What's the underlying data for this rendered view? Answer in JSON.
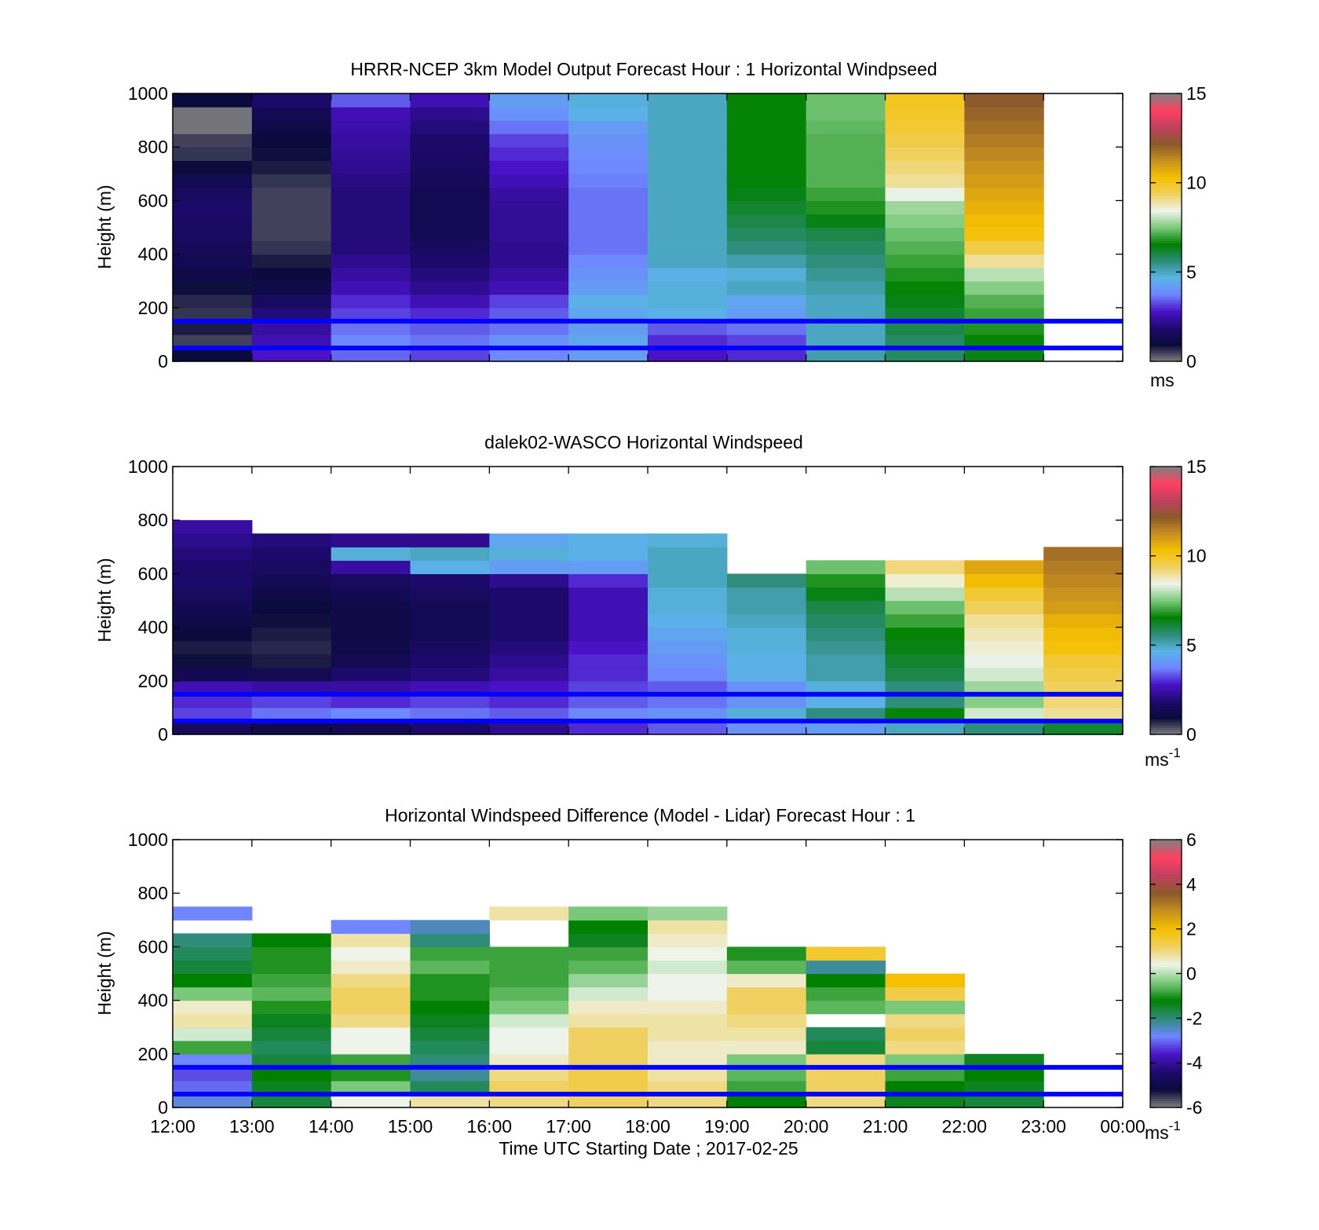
{
  "panels": [
    {
      "title": "HRRR-NCEP 3km Model Output   Forecast Hour : 1 Horizontal Windpseed",
      "ylabel": "Height (m)",
      "cbar_unit": "ms",
      "cbar_unit_sup": ""
    },
    {
      "title": "dalek02-WASCO  Horizontal Windspeed",
      "ylabel": "Height (m)",
      "cbar_unit": "ms",
      "cbar_unit_sup": "-1"
    },
    {
      "title": "Horizontal Windspeed Difference (Model - Lidar) Forecast Hour : 1",
      "ylabel": "Height (m)",
      "cbar_unit": "ms",
      "cbar_unit_sup": "-1"
    }
  ],
  "xlabel": "Time UTC  Starting Date ; 2017-02-25",
  "x_ticks": [
    "12:00",
    "13:00",
    "14:00",
    "15:00",
    "16:00",
    "17:00",
    "18:00",
    "19:00",
    "20:00",
    "21:00",
    "22:00",
    "23:00",
    "00:00"
  ],
  "y_ticks": [
    "0",
    "200",
    "400",
    "600",
    "800",
    "1000"
  ],
  "cbar_ticks_speed": [
    "0",
    "5",
    "10",
    "15"
  ],
  "cbar_ticks_diff": [
    "-6",
    "-4",
    "-2",
    "0",
    "2",
    "4",
    "6"
  ],
  "colors": {
    "line": "#0000ff",
    "colormap_speed": [
      "#808080",
      "#0a0a3a",
      "#1e0a6e",
      "#4a12c8",
      "#6f86ff",
      "#5ab4e6",
      "#2e8c78",
      "#008000",
      "#7ac87a",
      "#eef4ea",
      "#f0d060",
      "#f5c000",
      "#c89020",
      "#8b5a2b",
      "#c04060",
      "#ff4060",
      "#808080"
    ],
    "colormap_diff": [
      "#808080",
      "#0a0a3a",
      "#1e0a6e",
      "#4a12c8",
      "#6f86ff",
      "#2e8c78",
      "#008000",
      "#7ac87a",
      "#eef4ea",
      "#f0d060",
      "#f5c000",
      "#c89020",
      "#8b5a2b",
      "#c04060",
      "#ff4060",
      "#808080"
    ]
  },
  "chart_data": [
    {
      "type": "heatmap",
      "title": "HRRR-NCEP 3km Model Output   Forecast Hour : 1 Horizontal Windpseed",
      "xlabel": "",
      "ylabel": "Height (m)",
      "x": [
        "12:00",
        "13:00",
        "14:00",
        "15:00",
        "16:00",
        "17:00",
        "18:00",
        "19:00",
        "20:00",
        "21:00",
        "22:00",
        "23:00"
      ],
      "y": [
        25,
        75,
        125,
        175,
        225,
        275,
        325,
        375,
        425,
        475,
        525,
        575,
        625,
        675,
        725,
        775,
        825,
        875,
        925,
        975
      ],
      "ylim": [
        0,
        1000
      ],
      "clim": [
        0,
        15
      ],
      "colorbar_label": "ms",
      "hlines_m": [
        150,
        50
      ],
      "values": [
        [
          1.0,
          2.8,
          3.5,
          3.2,
          3.8,
          4.2,
          2.8,
          3.0,
          5.2,
          5.8,
          6.4,
          null
        ],
        [
          0.5,
          2.6,
          3.8,
          3.6,
          4.0,
          4.4,
          3.0,
          3.2,
          5.0,
          5.8,
          6.6,
          null
        ],
        [
          0.8,
          2.4,
          3.6,
          3.4,
          3.6,
          4.2,
          3.4,
          3.6,
          5.0,
          6.0,
          6.8,
          null
        ],
        [
          0.6,
          2.0,
          3.2,
          3.0,
          3.4,
          4.4,
          4.6,
          4.2,
          5.0,
          6.2,
          7.0,
          null
        ],
        [
          0.7,
          1.6,
          3.0,
          2.6,
          3.2,
          4.6,
          4.8,
          4.4,
          5.0,
          6.4,
          7.2,
          null
        ],
        [
          0.9,
          1.2,
          2.6,
          2.2,
          2.6,
          4.2,
          4.8,
          5.0,
          5.2,
          6.6,
          7.6,
          null
        ],
        [
          1.2,
          1.0,
          2.4,
          2.0,
          2.4,
          4.0,
          4.6,
          4.8,
          5.4,
          6.8,
          8.0,
          null
        ],
        [
          1.4,
          0.8,
          2.2,
          1.8,
          2.2,
          3.8,
          5.0,
          5.2,
          5.6,
          7.0,
          9.0,
          null
        ],
        [
          1.5,
          0.6,
          2.0,
          1.6,
          2.2,
          3.6,
          5.0,
          5.6,
          5.8,
          7.2,
          9.6,
          null
        ],
        [
          1.6,
          0.5,
          2.0,
          1.4,
          2.3,
          3.6,
          5.0,
          5.8,
          6.0,
          7.4,
          10.2,
          null
        ],
        [
          1.7,
          0.5,
          2.0,
          1.4,
          2.3,
          3.6,
          5.0,
          6.0,
          6.4,
          7.6,
          10.4,
          null
        ],
        [
          1.8,
          0.5,
          2.0,
          1.4,
          2.3,
          3.6,
          5.0,
          6.2,
          6.8,
          7.8,
          10.6,
          null
        ],
        [
          1.6,
          0.5,
          2.0,
          1.4,
          2.4,
          3.6,
          5.0,
          6.4,
          7.0,
          8.4,
          10.8,
          null
        ],
        [
          1.4,
          0.6,
          2.1,
          1.5,
          2.6,
          3.7,
          5.0,
          6.5,
          7.2,
          9.0,
          11.0,
          null
        ],
        [
          1.0,
          0.8,
          2.2,
          1.6,
          2.8,
          3.8,
          5.0,
          6.6,
          7.2,
          9.2,
          11.2,
          null
        ],
        [
          0.6,
          0.9,
          2.3,
          1.7,
          3.0,
          3.9,
          5.0,
          6.6,
          7.2,
          9.4,
          11.4,
          null
        ],
        [
          0.5,
          1.0,
          2.4,
          1.8,
          3.2,
          4.0,
          5.0,
          6.6,
          7.2,
          9.6,
          11.6,
          null
        ],
        [
          0.1,
          1.2,
          2.5,
          2.0,
          3.6,
          4.2,
          5.0,
          6.6,
          7.3,
          9.8,
          11.8,
          null
        ],
        [
          0.1,
          1.4,
          2.6,
          2.2,
          4.0,
          4.6,
          5.0,
          6.6,
          7.4,
          9.9,
          12.0,
          null
        ],
        [
          1.0,
          1.8,
          3.4,
          2.6,
          4.2,
          4.8,
          5.0,
          6.6,
          7.4,
          10.0,
          12.2,
          null
        ]
      ]
    },
    {
      "type": "heatmap",
      "title": "dalek02-WASCO  Horizontal Windspeed",
      "xlabel": "",
      "ylabel": "Height (m)",
      "x": [
        "12:00",
        "13:00",
        "14:00",
        "15:00",
        "16:00",
        "17:00",
        "18:00",
        "19:00",
        "20:00",
        "21:00",
        "22:00",
        "23:00"
      ],
      "y": [
        25,
        75,
        125,
        175,
        225,
        275,
        325,
        375,
        425,
        475,
        525,
        575,
        625,
        675,
        725,
        775,
        825,
        875,
        925,
        975
      ],
      "ylim": [
        0,
        1000
      ],
      "clim": [
        0,
        15
      ],
      "colorbar_label": "ms-1",
      "hlines_m": [
        150,
        50
      ],
      "values": [
        [
          1.5,
          1.2,
          1.4,
          1.8,
          2.2,
          3.0,
          3.4,
          4.0,
          4.2,
          5.0,
          5.6,
          6.2
        ],
        [
          3.2,
          3.6,
          3.8,
          3.6,
          3.4,
          3.8,
          4.0,
          4.8,
          5.6,
          6.6,
          8.2,
          9.0
        ],
        [
          3.0,
          3.2,
          3.0,
          3.2,
          3.0,
          3.4,
          3.6,
          4.0,
          4.6,
          5.6,
          7.6,
          9.2
        ],
        [
          2.6,
          2.4,
          2.4,
          2.6,
          2.8,
          3.2,
          3.4,
          4.0,
          4.8,
          5.6,
          7.8,
          9.4
        ],
        [
          1.4,
          1.4,
          1.8,
          2.0,
          2.4,
          3.0,
          3.8,
          4.6,
          5.2,
          6.0,
          8.2,
          9.6
        ],
        [
          0.9,
          0.8,
          1.4,
          1.8,
          2.2,
          3.0,
          4.0,
          4.6,
          5.2,
          6.2,
          8.4,
          9.8
        ],
        [
          0.8,
          0.7,
          1.2,
          1.6,
          2.0,
          2.8,
          4.2,
          4.8,
          5.4,
          6.4,
          8.6,
          10.2
        ],
        [
          1.0,
          0.8,
          1.2,
          1.4,
          1.8,
          2.6,
          4.4,
          4.8,
          5.6,
          6.6,
          8.8,
          10.4
        ],
        [
          1.2,
          0.9,
          1.2,
          1.4,
          1.8,
          2.6,
          4.6,
          5.0,
          5.8,
          7.0,
          9.0,
          10.6
        ],
        [
          1.4,
          1.0,
          1.2,
          1.4,
          1.8,
          2.6,
          4.8,
          5.2,
          6.0,
          7.4,
          9.4,
          11.0
        ],
        [
          1.6,
          1.2,
          1.4,
          1.6,
          1.8,
          2.6,
          4.8,
          5.2,
          6.4,
          8.0,
          9.8,
          11.2
        ],
        [
          1.8,
          1.4,
          1.6,
          1.8,
          2.2,
          3.0,
          5.0,
          5.6,
          6.8,
          8.6,
          10.4,
          11.4
        ],
        [
          1.8,
          1.6,
          2.4,
          4.6,
          4.2,
          4.2,
          5.0,
          null,
          7.4,
          9.2,
          10.8,
          11.6
        ],
        [
          2.0,
          1.8,
          4.8,
          5.0,
          4.8,
          4.6,
          5.0,
          null,
          null,
          null,
          null,
          11.8
        ],
        [
          2.2,
          2.0,
          2.2,
          2.2,
          4.4,
          4.6,
          4.8,
          null,
          null,
          null,
          null,
          null
        ],
        [
          2.4,
          null,
          null,
          null,
          null,
          null,
          null,
          null,
          null,
          null,
          null,
          null
        ],
        [
          null,
          null,
          null,
          null,
          null,
          null,
          null,
          null,
          null,
          null,
          null,
          null
        ],
        [
          null,
          null,
          null,
          null,
          null,
          null,
          null,
          null,
          null,
          null,
          null,
          null
        ],
        [
          null,
          null,
          null,
          null,
          null,
          null,
          null,
          null,
          null,
          null,
          null,
          null
        ],
        [
          null,
          null,
          null,
          null,
          null,
          null,
          null,
          null,
          null,
          null,
          null,
          null
        ]
      ]
    },
    {
      "type": "heatmap",
      "title": "Horizontal Windspeed Difference (Model - Lidar) Forecast Hour : 1",
      "xlabel": "Time UTC  Starting Date ; 2017-02-25",
      "ylabel": "Height (m)",
      "x": [
        "12:00",
        "13:00",
        "14:00",
        "15:00",
        "16:00",
        "17:00",
        "18:00",
        "19:00",
        "20:00",
        "21:00",
        "22:00",
        "23:00"
      ],
      "y": [
        25,
        75,
        125,
        175,
        225,
        275,
        325,
        375,
        425,
        475,
        525,
        575,
        625,
        675,
        725,
        775,
        825,
        875,
        925,
        975
      ],
      "ylim": [
        0,
        1000
      ],
      "clim": [
        -6,
        6
      ],
      "colorbar_label": "ms-1",
      "hlines_m": [
        150,
        50
      ],
      "values": [
        [
          -2.6,
          -1.6,
          0.4,
          0.8,
          1.0,
          1.2,
          1.0,
          -1.2,
          1.0,
          -1.4,
          -1.6,
          null
        ],
        [
          -3.0,
          -1.4,
          -0.4,
          -1.8,
          1.2,
          1.4,
          1.0,
          -0.8,
          1.2,
          -1.2,
          -1.4,
          null
        ],
        [
          -3.2,
          -1.2,
          -1.0,
          -2.2,
          1.0,
          1.4,
          0.8,
          -0.6,
          1.2,
          -0.8,
          -1.2,
          null
        ],
        [
          -2.8,
          -1.6,
          -0.8,
          -2.0,
          0.6,
          1.2,
          0.6,
          -0.4,
          1.0,
          -0.4,
          -1.4,
          null
        ],
        [
          -0.8,
          -1.8,
          0.4,
          -1.8,
          0.4,
          1.2,
          0.6,
          0.6,
          -1.6,
          1.0,
          null,
          null
        ],
        [
          0.2,
          -1.6,
          0.4,
          -1.6,
          0.4,
          1.2,
          0.8,
          0.8,
          -1.8,
          1.2,
          null,
          null
        ],
        [
          0.8,
          -1.4,
          1.0,
          -1.4,
          0.2,
          0.8,
          0.8,
          1.0,
          null,
          1.0,
          null,
          null
        ],
        [
          0.6,
          -1.0,
          1.2,
          -1.2,
          -0.4,
          0.6,
          0.6,
          1.2,
          -0.6,
          -0.4,
          null,
          null
        ],
        [
          -0.4,
          -0.6,
          1.2,
          -1.0,
          -0.6,
          0.2,
          0.4,
          1.2,
          -0.8,
          1.4,
          null,
          null
        ],
        [
          -1.2,
          -0.8,
          1.0,
          -1.0,
          -0.8,
          -0.2,
          0.4,
          0.6,
          -1.2,
          2.0,
          null,
          null
        ],
        [
          -1.6,
          -1.0,
          0.6,
          -0.6,
          -0.8,
          -0.6,
          0.2,
          -0.6,
          -2.2,
          null,
          null,
          null
        ],
        [
          -1.8,
          -1.0,
          0.4,
          -0.8,
          -0.8,
          -0.8,
          0.4,
          -1.0,
          1.6,
          null,
          null,
          null
        ],
        [
          -2.0,
          -1.2,
          0.8,
          -2.0,
          null,
          -1.4,
          0.6,
          null,
          null,
          null,
          null,
          null
        ],
        [
          null,
          null,
          -2.8,
          -2.4,
          null,
          -1.2,
          0.8,
          null,
          null,
          null,
          null,
          null
        ],
        [
          -2.8,
          null,
          null,
          null,
          0.8,
          -0.4,
          -0.2,
          null,
          null,
          null,
          null,
          null
        ],
        [
          null,
          null,
          null,
          null,
          null,
          null,
          null,
          null,
          null,
          null,
          null,
          null
        ],
        [
          null,
          null,
          null,
          null,
          null,
          null,
          null,
          null,
          null,
          null,
          null,
          null
        ],
        [
          null,
          null,
          null,
          null,
          null,
          null,
          null,
          null,
          null,
          null,
          null,
          null
        ],
        [
          null,
          null,
          null,
          null,
          null,
          null,
          null,
          null,
          null,
          null,
          null,
          null
        ],
        [
          null,
          null,
          null,
          null,
          null,
          null,
          null,
          null,
          null,
          null,
          null,
          null
        ]
      ]
    }
  ]
}
